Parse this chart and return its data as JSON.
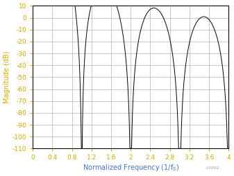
{
  "ylabel": "Magnitude (dB)",
  "xlim": [
    0,
    4
  ],
  "ylim": [
    -110,
    10
  ],
  "xticks": [
    0,
    0.4,
    0.8,
    1.2,
    1.6,
    2.0,
    2.4,
    2.8,
    3.2,
    3.6,
    4.0
  ],
  "xtick_labels": [
    "0",
    "0.4",
    "0.8",
    "1.2",
    "1.6",
    "2",
    "2.4",
    "2.8",
    "3.2",
    "3.6",
    "4"
  ],
  "yticks": [
    10,
    0,
    -10,
    -20,
    -30,
    -40,
    -50,
    -60,
    -70,
    -80,
    -90,
    -100,
    -110
  ],
  "ytick_labels": [
    "10",
    "0",
    "-10",
    "-20",
    "-30",
    "-40",
    "-50",
    "-60",
    "-70",
    "-80",
    "-90",
    "-100",
    "-110"
  ],
  "line_color": "#000000",
  "grid_color": "#b0b0b0",
  "ylabel_color": "#d4a800",
  "tick_label_color": "#d4a800",
  "xlabel_color": "#4472c4",
  "background_color": "#ffffff",
  "watermark": "LX002",
  "watermark_color": "#a0a0a0"
}
